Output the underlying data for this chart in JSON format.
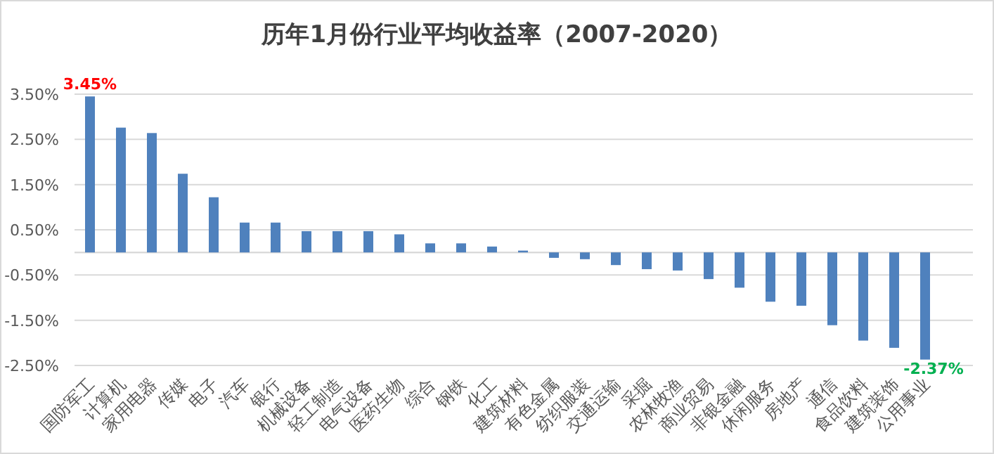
{
  "chart_data": {
    "type": "bar",
    "title": "历年1月份行业平均收益率（2007-2020）",
    "categories": [
      "国防军工",
      "计算机",
      "家用电器",
      "传媒",
      "电子",
      "汽车",
      "银行",
      "机械设备",
      "轻工制造",
      "电气设备",
      "医药生物",
      "综合",
      "钢铁",
      "化工",
      "建筑材料",
      "有色金属",
      "纺织服装",
      "交通运输",
      "采掘",
      "农林牧渔",
      "商业贸易",
      "非银金融",
      "休闲服务",
      "房地产",
      "通信",
      "食品饮料",
      "建筑装饰",
      "公用事业"
    ],
    "values": [
      3.45,
      2.76,
      2.64,
      1.74,
      1.22,
      0.66,
      0.66,
      0.47,
      0.47,
      0.47,
      0.4,
      0.2,
      0.2,
      0.13,
      0.04,
      -0.12,
      -0.15,
      -0.28,
      -0.37,
      -0.4,
      -0.59,
      -0.78,
      -1.09,
      -1.18,
      -1.61,
      -1.95,
      -2.11,
      -2.37
    ],
    "value_labels": [
      "3.45%",
      null,
      null,
      null,
      null,
      null,
      null,
      null,
      null,
      null,
      null,
      null,
      null,
      null,
      null,
      null,
      null,
      null,
      null,
      null,
      null,
      null,
      null,
      null,
      null,
      null,
      null,
      "-2.37%"
    ],
    "color": "#4f81bd",
    "ylim": [
      -2.5,
      3.5
    ],
    "yticks": [
      {
        "value": 3.5,
        "label": "3.50%"
      },
      {
        "value": 2.5,
        "label": "2.50%"
      },
      {
        "value": 1.5,
        "label": "1.50%"
      },
      {
        "value": 0.5,
        "label": "0.50%"
      },
      {
        "value": 0,
        "label": null
      },
      {
        "value": -0.5,
        "label": "-0.50%"
      },
      {
        "value": -1.5,
        "label": "-1.50%"
      },
      {
        "value": -2.5,
        "label": "-2.50%"
      }
    ],
    "grid": "y"
  }
}
